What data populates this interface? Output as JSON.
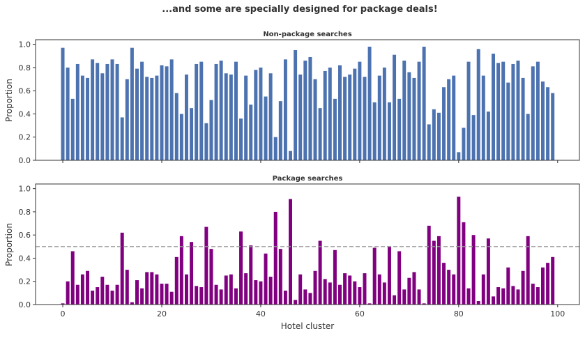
{
  "suptitle": "...and some are specially designed for package deals!",
  "chart_data": [
    {
      "type": "bar",
      "title": "Non-package searches",
      "ylabel": "Proportion",
      "xlabel": "",
      "color": "#4c72b0",
      "xlim": [
        -5.5,
        104.4
      ],
      "ylim": [
        0,
        1.04
      ],
      "yticks": [
        "0.0",
        "0.2",
        "0.4",
        "0.6",
        "0.8",
        "1.0"
      ],
      "xticks": [
        0,
        20,
        40,
        60,
        80,
        100
      ],
      "show_xtick_labels": false,
      "values": [
        0.97,
        0.8,
        0.53,
        0.83,
        0.73,
        0.71,
        0.87,
        0.84,
        0.75,
        0.83,
        0.87,
        0.83,
        0.37,
        0.7,
        0.97,
        0.79,
        0.85,
        0.72,
        0.71,
        0.73,
        0.82,
        0.81,
        0.87,
        0.58,
        0.4,
        0.74,
        0.45,
        0.83,
        0.85,
        0.32,
        0.52,
        0.83,
        0.86,
        0.75,
        0.74,
        0.85,
        0.36,
        0.73,
        0.48,
        0.78,
        0.8,
        0.55,
        0.75,
        0.2,
        0.51,
        0.87,
        0.08,
        0.95,
        0.74,
        0.86,
        0.89,
        0.7,
        0.45,
        0.77,
        0.8,
        0.53,
        0.82,
        0.72,
        0.74,
        0.79,
        0.85,
        0.72,
        0.98,
        0.5,
        0.73,
        0.8,
        0.5,
        0.91,
        0.53,
        0.86,
        0.76,
        0.71,
        0.85,
        0.98,
        0.31,
        0.44,
        0.41,
        0.63,
        0.7,
        0.73,
        0.07,
        0.28,
        0.85,
        0.39,
        0.96,
        0.73,
        0.42,
        0.92,
        0.84,
        0.85,
        0.67,
        0.83,
        0.86,
        0.71,
        0.4,
        0.81,
        0.85,
        0.68,
        0.63,
        0.58
      ]
    },
    {
      "type": "bar",
      "title": "Package searches",
      "ylabel": "Proportion",
      "xlabel": "Hotel cluster",
      "color": "#800080",
      "xlim": [
        -5.5,
        104.4
      ],
      "ylim": [
        0,
        1.04
      ],
      "yticks": [
        "0.0",
        "0.2",
        "0.4",
        "0.6",
        "0.8",
        "1.0"
      ],
      "xticks": [
        0,
        20,
        40,
        60,
        80,
        100
      ],
      "show_xtick_labels": true,
      "hline": {
        "y": 0.5,
        "style": "dashed",
        "color": "#999999"
      },
      "values": [
        0.01,
        0.2,
        0.46,
        0.17,
        0.26,
        0.29,
        0.12,
        0.15,
        0.24,
        0.17,
        0.12,
        0.17,
        0.62,
        0.3,
        0.02,
        0.21,
        0.14,
        0.28,
        0.28,
        0.26,
        0.18,
        0.18,
        0.11,
        0.41,
        0.59,
        0.26,
        0.54,
        0.16,
        0.15,
        0.67,
        0.48,
        0.17,
        0.13,
        0.25,
        0.26,
        0.14,
        0.63,
        0.27,
        0.51,
        0.21,
        0.2,
        0.44,
        0.24,
        0.8,
        0.48,
        0.12,
        0.91,
        0.04,
        0.26,
        0.13,
        0.1,
        0.29,
        0.55,
        0.22,
        0.19,
        0.47,
        0.17,
        0.27,
        0.25,
        0.2,
        0.15,
        0.27,
        0.01,
        0.49,
        0.26,
        0.19,
        0.5,
        0.08,
        0.46,
        0.13,
        0.23,
        0.28,
        0.13,
        0.01,
        0.68,
        0.55,
        0.59,
        0.36,
        0.3,
        0.26,
        0.93,
        0.71,
        0.14,
        0.6,
        0.03,
        0.26,
        0.57,
        0.07,
        0.15,
        0.14,
        0.32,
        0.16,
        0.13,
        0.29,
        0.59,
        0.18,
        0.15,
        0.32,
        0.36,
        0.41
      ]
    }
  ]
}
